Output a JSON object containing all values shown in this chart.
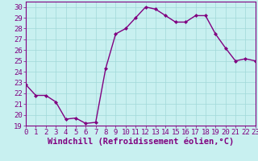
{
  "x": [
    0,
    1,
    2,
    3,
    4,
    5,
    6,
    7,
    8,
    9,
    10,
    11,
    12,
    13,
    14,
    15,
    16,
    17,
    18,
    19,
    20,
    21,
    22,
    23
  ],
  "y": [
    22.8,
    21.8,
    21.8,
    21.2,
    19.6,
    19.7,
    19.2,
    19.3,
    24.3,
    27.5,
    28.0,
    29.0,
    30.0,
    29.8,
    29.2,
    28.6,
    28.6,
    29.2,
    29.2,
    27.5,
    26.2,
    25.0,
    25.2,
    25.0
  ],
  "line_color": "#800080",
  "marker": "D",
  "marker_size": 2.0,
  "bg_color": "#c8f0f0",
  "grid_color": "#a0d8d8",
  "xlabel": "Windchill (Refroidissement éolien,°C)",
  "xlim": [
    0,
    23
  ],
  "ylim": [
    19,
    30.5
  ],
  "yticks": [
    19,
    20,
    21,
    22,
    23,
    24,
    25,
    26,
    27,
    28,
    29,
    30
  ],
  "xticks": [
    0,
    1,
    2,
    3,
    4,
    5,
    6,
    7,
    8,
    9,
    10,
    11,
    12,
    13,
    14,
    15,
    16,
    17,
    18,
    19,
    20,
    21,
    22,
    23
  ],
  "font_color": "#800080",
  "font_size": 6.5,
  "xlabel_fontsize": 7.5,
  "line_width": 1.0
}
